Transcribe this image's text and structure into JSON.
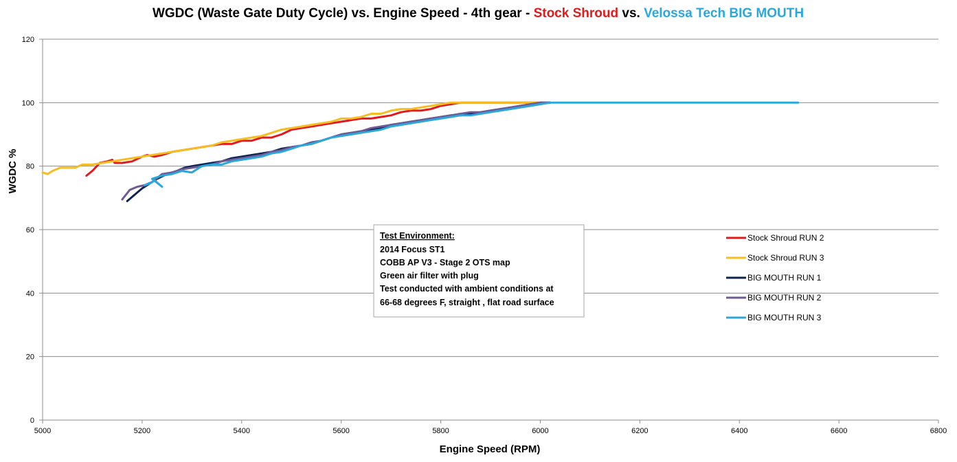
{
  "chart_data": {
    "type": "line",
    "title_parts": [
      {
        "text": "WGDC (Waste Gate Duty Cycle) vs. Engine Speed - 4th gear - ",
        "color": "#000000"
      },
      {
        "text": "Stock Shroud",
        "color": "#e31a1c"
      },
      {
        "text": " vs. ",
        "color": "#000000"
      },
      {
        "text": "Velossa Tech BIG MOUTH",
        "color": "#2aa8dc"
      }
    ],
    "xlabel": "Engine Speed (RPM)",
    "ylabel": "WGDC %",
    "xlim": [
      5000,
      6800
    ],
    "ylim": [
      0,
      120
    ],
    "x_ticks": [
      5000,
      5200,
      5400,
      5600,
      5800,
      6000,
      6200,
      6400,
      6600,
      6800
    ],
    "y_ticks": [
      0,
      20,
      40,
      60,
      80,
      100,
      120
    ],
    "grid": "horizontal",
    "legend_position": "right",
    "series": [
      {
        "name": "Stock Shroud RUN 2",
        "color": "#e31a1c",
        "points": [
          [
            5088,
            77
          ],
          [
            5100,
            78.5
          ],
          [
            5115,
            81
          ],
          [
            5130,
            81.5
          ],
          [
            5140,
            82
          ],
          [
            5145,
            81
          ],
          [
            5160,
            81
          ],
          [
            5180,
            81.5
          ],
          [
            5200,
            83
          ],
          [
            5210,
            83.5
          ],
          [
            5225,
            83
          ],
          [
            5240,
            83.5
          ],
          [
            5260,
            84.5
          ],
          [
            5280,
            85
          ],
          [
            5300,
            85.5
          ],
          [
            5320,
            86
          ],
          [
            5340,
            86.5
          ],
          [
            5360,
            87
          ],
          [
            5380,
            87
          ],
          [
            5400,
            88
          ],
          [
            5420,
            88
          ],
          [
            5440,
            89
          ],
          [
            5460,
            89
          ],
          [
            5480,
            90
          ],
          [
            5500,
            91.5
          ],
          [
            5520,
            92
          ],
          [
            5540,
            92.5
          ],
          [
            5560,
            93
          ],
          [
            5580,
            93.5
          ],
          [
            5600,
            94
          ],
          [
            5620,
            94.5
          ],
          [
            5640,
            95
          ],
          [
            5660,
            95
          ],
          [
            5680,
            95.5
          ],
          [
            5700,
            96
          ],
          [
            5720,
            97
          ],
          [
            5740,
            97.5
          ],
          [
            5760,
            97.5
          ],
          [
            5780,
            98
          ],
          [
            5800,
            99
          ],
          [
            5820,
            99.5
          ],
          [
            5840,
            100
          ],
          [
            5880,
            100
          ],
          [
            5960,
            100
          ],
          [
            6000,
            100
          ]
        ]
      },
      {
        "name": "Stock Shroud RUN 3",
        "color": "#f5bd1f",
        "points": [
          [
            5000,
            78
          ],
          [
            5010,
            77.5
          ],
          [
            5020,
            78.5
          ],
          [
            5035,
            79.5
          ],
          [
            5050,
            79.5
          ],
          [
            5065,
            79.5
          ],
          [
            5080,
            80.5
          ],
          [
            5100,
            80.5
          ],
          [
            5120,
            81
          ],
          [
            5140,
            81.5
          ],
          [
            5160,
            82
          ],
          [
            5180,
            82.5
          ],
          [
            5200,
            83
          ],
          [
            5220,
            83.5
          ],
          [
            5240,
            84
          ],
          [
            5260,
            84.5
          ],
          [
            5280,
            85
          ],
          [
            5300,
            85.5
          ],
          [
            5320,
            86
          ],
          [
            5340,
            86.5
          ],
          [
            5360,
            87.5
          ],
          [
            5380,
            88
          ],
          [
            5400,
            88.5
          ],
          [
            5420,
            89
          ],
          [
            5440,
            89.5
          ],
          [
            5460,
            90.5
          ],
          [
            5480,
            91.5
          ],
          [
            5500,
            92
          ],
          [
            5520,
            92.5
          ],
          [
            5540,
            93
          ],
          [
            5560,
            93.5
          ],
          [
            5580,
            94
          ],
          [
            5600,
            95
          ],
          [
            5620,
            95
          ],
          [
            5640,
            95.5
          ],
          [
            5660,
            96.5
          ],
          [
            5680,
            96.5
          ],
          [
            5700,
            97.5
          ],
          [
            5720,
            98
          ],
          [
            5740,
            98
          ],
          [
            5760,
            98.5
          ],
          [
            5780,
            99
          ],
          [
            5800,
            99.5
          ],
          [
            5820,
            100
          ],
          [
            5850,
            100
          ],
          [
            5900,
            100
          ],
          [
            5950,
            100
          ],
          [
            6000,
            100
          ]
        ]
      },
      {
        "name": "BIG MOUTH RUN 1",
        "color": "#0f2352",
        "points": [
          [
            5170,
            69
          ],
          [
            5185,
            71
          ],
          [
            5200,
            73
          ],
          [
            5215,
            74.5
          ],
          [
            5230,
            76
          ],
          [
            5250,
            77.5
          ],
          [
            5270,
            78.5
          ],
          [
            5285,
            79.5
          ],
          [
            5300,
            80
          ],
          [
            5320,
            80.5
          ],
          [
            5340,
            81
          ],
          [
            5360,
            81.5
          ],
          [
            5380,
            82.5
          ],
          [
            5400,
            83
          ],
          [
            5420,
            83.5
          ],
          [
            5440,
            84
          ],
          [
            5460,
            84.5
          ],
          [
            5480,
            85.5
          ],
          [
            5500,
            86
          ],
          [
            5520,
            86.5
          ],
          [
            5540,
            87
          ],
          [
            5560,
            88
          ],
          [
            5580,
            89
          ],
          [
            5600,
            90
          ],
          [
            5620,
            90.5
          ],
          [
            5640,
            91
          ],
          [
            5660,
            91.5
          ],
          [
            5680,
            92
          ],
          [
            5700,
            93
          ],
          [
            5720,
            93.5
          ],
          [
            5740,
            94
          ],
          [
            5760,
            94.5
          ],
          [
            5780,
            95
          ],
          [
            5800,
            95.5
          ],
          [
            5820,
            96
          ],
          [
            5840,
            96
          ],
          [
            5860,
            96.5
          ],
          [
            5880,
            97
          ],
          [
            5900,
            97.5
          ],
          [
            5920,
            98
          ],
          [
            5940,
            98.5
          ],
          [
            5960,
            99
          ],
          [
            5980,
            99.5
          ],
          [
            6000,
            100
          ],
          [
            6020,
            100
          ]
        ]
      },
      {
        "name": "BIG MOUTH RUN 2",
        "color": "#6e5b96",
        "points": [
          [
            5160,
            69.5
          ],
          [
            5175,
            72.5
          ],
          [
            5190,
            73.5
          ],
          [
            5205,
            74
          ],
          [
            5220,
            75
          ],
          [
            5240,
            77.5
          ],
          [
            5260,
            78
          ],
          [
            5280,
            79
          ],
          [
            5300,
            79.5
          ],
          [
            5320,
            80
          ],
          [
            5340,
            80.5
          ],
          [
            5360,
            81.5
          ],
          [
            5380,
            82
          ],
          [
            5400,
            82.5
          ],
          [
            5420,
            83
          ],
          [
            5440,
            83.5
          ],
          [
            5460,
            84.5
          ],
          [
            5480,
            85
          ],
          [
            5500,
            86
          ],
          [
            5520,
            86.5
          ],
          [
            5540,
            87.5
          ],
          [
            5560,
            88
          ],
          [
            5580,
            89
          ],
          [
            5600,
            90
          ],
          [
            5620,
            90.5
          ],
          [
            5640,
            91
          ],
          [
            5660,
            92
          ],
          [
            5680,
            92.5
          ],
          [
            5700,
            93
          ],
          [
            5720,
            93.5
          ],
          [
            5740,
            94
          ],
          [
            5760,
            94.5
          ],
          [
            5780,
            95
          ],
          [
            5800,
            95.5
          ],
          [
            5820,
            96
          ],
          [
            5840,
            96.5
          ],
          [
            5860,
            97
          ],
          [
            5880,
            97
          ],
          [
            5900,
            97.5
          ],
          [
            5920,
            98
          ],
          [
            5940,
            98.5
          ],
          [
            5960,
            99
          ],
          [
            5980,
            99.5
          ],
          [
            6000,
            100
          ],
          [
            6020,
            100
          ]
        ]
      },
      {
        "name": "BIG MOUTH RUN 3",
        "color": "#2aa8dc",
        "points": [
          [
            5205,
            74
          ],
          [
            5215,
            74.5
          ],
          [
            5225,
            75.5
          ],
          [
            5240,
            73.5
          ],
          [
            5220,
            76
          ],
          [
            5240,
            77
          ],
          [
            5260,
            77.5
          ],
          [
            5280,
            78.5
          ],
          [
            5300,
            78
          ],
          [
            5320,
            80
          ],
          [
            5340,
            80.5
          ],
          [
            5360,
            80.5
          ],
          [
            5380,
            81.5
          ],
          [
            5400,
            82
          ],
          [
            5420,
            82.5
          ],
          [
            5440,
            83
          ],
          [
            5460,
            84
          ],
          [
            5480,
            84.5
          ],
          [
            5500,
            85.5
          ],
          [
            5520,
            86.5
          ],
          [
            5540,
            87
          ],
          [
            5560,
            88
          ],
          [
            5580,
            89
          ],
          [
            5600,
            89.5
          ],
          [
            5620,
            90
          ],
          [
            5640,
            90.5
          ],
          [
            5660,
            91
          ],
          [
            5680,
            91.5
          ],
          [
            5700,
            92.5
          ],
          [
            5720,
            93
          ],
          [
            5740,
            93.5
          ],
          [
            5760,
            94
          ],
          [
            5780,
            94.5
          ],
          [
            5800,
            95
          ],
          [
            5820,
            95.5
          ],
          [
            5840,
            96
          ],
          [
            5860,
            96
          ],
          [
            5880,
            96.5
          ],
          [
            5900,
            97
          ],
          [
            5920,
            97.5
          ],
          [
            5940,
            98
          ],
          [
            5960,
            98.5
          ],
          [
            5980,
            99
          ],
          [
            6000,
            99.5
          ],
          [
            6020,
            100
          ],
          [
            6100,
            100
          ],
          [
            6200,
            100
          ],
          [
            6300,
            100
          ],
          [
            6400,
            100
          ],
          [
            6500,
            100
          ],
          [
            6518,
            100
          ]
        ]
      }
    ],
    "annotation": {
      "heading": "Test Environment:",
      "lines": [
        "2014 Focus ST1",
        "COBB AP V3 - Stage 2 OTS map",
        "Green air filter with plug",
        "Test conducted with ambient conditions at",
        "66-68 degrees F, straight , flat road surface"
      ]
    }
  }
}
